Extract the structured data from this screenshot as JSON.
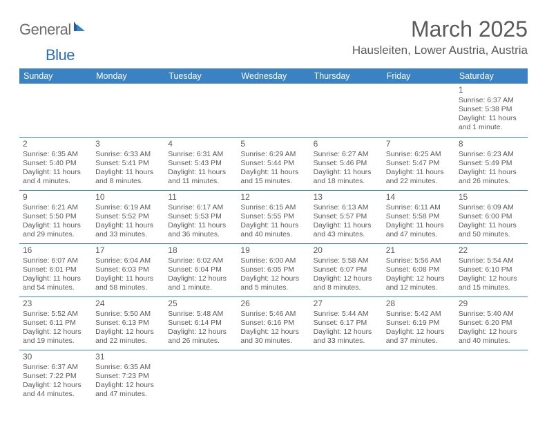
{
  "logo": {
    "general": "General",
    "blue": "Blue"
  },
  "title": "March 2025",
  "location": "Hausleiten, Lower Austria, Austria",
  "dayHeaders": [
    "Sunday",
    "Monday",
    "Tuesday",
    "Wednesday",
    "Thursday",
    "Friday",
    "Saturday"
  ],
  "colors": {
    "headerBg": "#3a82c4",
    "headerText": "#ffffff",
    "rule": "#3a82c4",
    "bodyText": "#5a5a5a",
    "logoGray": "#6b6b6b",
    "logoBlue": "#2d6fb5"
  },
  "weeks": [
    [
      null,
      null,
      null,
      null,
      null,
      null,
      {
        "n": "1",
        "sr": "Sunrise: 6:37 AM",
        "ss": "Sunset: 5:38 PM",
        "d1": "Daylight: 11 hours",
        "d2": "and 1 minute."
      }
    ],
    [
      {
        "n": "2",
        "sr": "Sunrise: 6:35 AM",
        "ss": "Sunset: 5:40 PM",
        "d1": "Daylight: 11 hours",
        "d2": "and 4 minutes."
      },
      {
        "n": "3",
        "sr": "Sunrise: 6:33 AM",
        "ss": "Sunset: 5:41 PM",
        "d1": "Daylight: 11 hours",
        "d2": "and 8 minutes."
      },
      {
        "n": "4",
        "sr": "Sunrise: 6:31 AM",
        "ss": "Sunset: 5:43 PM",
        "d1": "Daylight: 11 hours",
        "d2": "and 11 minutes."
      },
      {
        "n": "5",
        "sr": "Sunrise: 6:29 AM",
        "ss": "Sunset: 5:44 PM",
        "d1": "Daylight: 11 hours",
        "d2": "and 15 minutes."
      },
      {
        "n": "6",
        "sr": "Sunrise: 6:27 AM",
        "ss": "Sunset: 5:46 PM",
        "d1": "Daylight: 11 hours",
        "d2": "and 18 minutes."
      },
      {
        "n": "7",
        "sr": "Sunrise: 6:25 AM",
        "ss": "Sunset: 5:47 PM",
        "d1": "Daylight: 11 hours",
        "d2": "and 22 minutes."
      },
      {
        "n": "8",
        "sr": "Sunrise: 6:23 AM",
        "ss": "Sunset: 5:49 PM",
        "d1": "Daylight: 11 hours",
        "d2": "and 26 minutes."
      }
    ],
    [
      {
        "n": "9",
        "sr": "Sunrise: 6:21 AM",
        "ss": "Sunset: 5:50 PM",
        "d1": "Daylight: 11 hours",
        "d2": "and 29 minutes."
      },
      {
        "n": "10",
        "sr": "Sunrise: 6:19 AM",
        "ss": "Sunset: 5:52 PM",
        "d1": "Daylight: 11 hours",
        "d2": "and 33 minutes."
      },
      {
        "n": "11",
        "sr": "Sunrise: 6:17 AM",
        "ss": "Sunset: 5:53 PM",
        "d1": "Daylight: 11 hours",
        "d2": "and 36 minutes."
      },
      {
        "n": "12",
        "sr": "Sunrise: 6:15 AM",
        "ss": "Sunset: 5:55 PM",
        "d1": "Daylight: 11 hours",
        "d2": "and 40 minutes."
      },
      {
        "n": "13",
        "sr": "Sunrise: 6:13 AM",
        "ss": "Sunset: 5:57 PM",
        "d1": "Daylight: 11 hours",
        "d2": "and 43 minutes."
      },
      {
        "n": "14",
        "sr": "Sunrise: 6:11 AM",
        "ss": "Sunset: 5:58 PM",
        "d1": "Daylight: 11 hours",
        "d2": "and 47 minutes."
      },
      {
        "n": "15",
        "sr": "Sunrise: 6:09 AM",
        "ss": "Sunset: 6:00 PM",
        "d1": "Daylight: 11 hours",
        "d2": "and 50 minutes."
      }
    ],
    [
      {
        "n": "16",
        "sr": "Sunrise: 6:07 AM",
        "ss": "Sunset: 6:01 PM",
        "d1": "Daylight: 11 hours",
        "d2": "and 54 minutes."
      },
      {
        "n": "17",
        "sr": "Sunrise: 6:04 AM",
        "ss": "Sunset: 6:03 PM",
        "d1": "Daylight: 11 hours",
        "d2": "and 58 minutes."
      },
      {
        "n": "18",
        "sr": "Sunrise: 6:02 AM",
        "ss": "Sunset: 6:04 PM",
        "d1": "Daylight: 12 hours",
        "d2": "and 1 minute."
      },
      {
        "n": "19",
        "sr": "Sunrise: 6:00 AM",
        "ss": "Sunset: 6:05 PM",
        "d1": "Daylight: 12 hours",
        "d2": "and 5 minutes."
      },
      {
        "n": "20",
        "sr": "Sunrise: 5:58 AM",
        "ss": "Sunset: 6:07 PM",
        "d1": "Daylight: 12 hours",
        "d2": "and 8 minutes."
      },
      {
        "n": "21",
        "sr": "Sunrise: 5:56 AM",
        "ss": "Sunset: 6:08 PM",
        "d1": "Daylight: 12 hours",
        "d2": "and 12 minutes."
      },
      {
        "n": "22",
        "sr": "Sunrise: 5:54 AM",
        "ss": "Sunset: 6:10 PM",
        "d1": "Daylight: 12 hours",
        "d2": "and 15 minutes."
      }
    ],
    [
      {
        "n": "23",
        "sr": "Sunrise: 5:52 AM",
        "ss": "Sunset: 6:11 PM",
        "d1": "Daylight: 12 hours",
        "d2": "and 19 minutes."
      },
      {
        "n": "24",
        "sr": "Sunrise: 5:50 AM",
        "ss": "Sunset: 6:13 PM",
        "d1": "Daylight: 12 hours",
        "d2": "and 22 minutes."
      },
      {
        "n": "25",
        "sr": "Sunrise: 5:48 AM",
        "ss": "Sunset: 6:14 PM",
        "d1": "Daylight: 12 hours",
        "d2": "and 26 minutes."
      },
      {
        "n": "26",
        "sr": "Sunrise: 5:46 AM",
        "ss": "Sunset: 6:16 PM",
        "d1": "Daylight: 12 hours",
        "d2": "and 30 minutes."
      },
      {
        "n": "27",
        "sr": "Sunrise: 5:44 AM",
        "ss": "Sunset: 6:17 PM",
        "d1": "Daylight: 12 hours",
        "d2": "and 33 minutes."
      },
      {
        "n": "28",
        "sr": "Sunrise: 5:42 AM",
        "ss": "Sunset: 6:19 PM",
        "d1": "Daylight: 12 hours",
        "d2": "and 37 minutes."
      },
      {
        "n": "29",
        "sr": "Sunrise: 5:40 AM",
        "ss": "Sunset: 6:20 PM",
        "d1": "Daylight: 12 hours",
        "d2": "and 40 minutes."
      }
    ],
    [
      {
        "n": "30",
        "sr": "Sunrise: 6:37 AM",
        "ss": "Sunset: 7:22 PM",
        "d1": "Daylight: 12 hours",
        "d2": "and 44 minutes."
      },
      {
        "n": "31",
        "sr": "Sunrise: 6:35 AM",
        "ss": "Sunset: 7:23 PM",
        "d1": "Daylight: 12 hours",
        "d2": "and 47 minutes."
      },
      null,
      null,
      null,
      null,
      null
    ]
  ]
}
